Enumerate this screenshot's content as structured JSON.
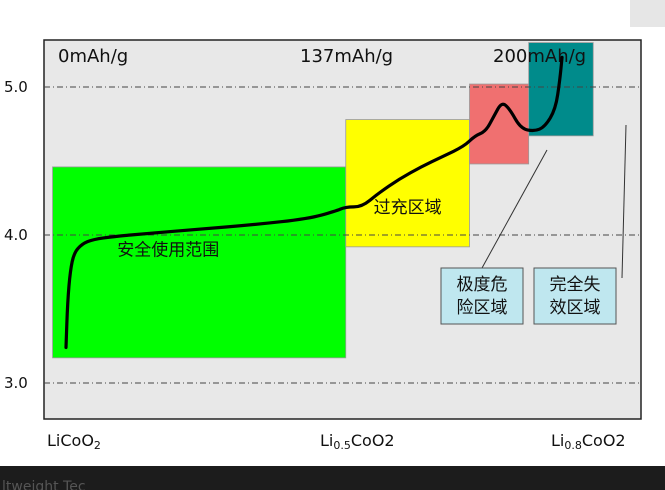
{
  "chart_data": {
    "type": "line",
    "title": "",
    "xlabel": "",
    "ylabel": "",
    "ylim": [
      2.65,
      5.35
    ],
    "xlim": [
      0,
      1
    ],
    "yticks": [
      {
        "value": 3.0,
        "label": "3.0"
      },
      {
        "value": 4.0,
        "label": "4.0"
      },
      {
        "value": 5.0,
        "label": "5.0"
      }
    ],
    "x_labels": [
      {
        "pos": 0.0,
        "main": "LiCoO",
        "sub": "",
        "tail": "2"
      },
      {
        "pos": 0.5,
        "main": "Li",
        "sub": "0.5",
        "tail": "CoO2"
      },
      {
        "pos": 0.8,
        "main": "Li",
        "sub": "0.8",
        "tail": "CoO2"
      }
    ],
    "capacity_labels": [
      {
        "pos": 0.0,
        "text": "0mAh/g"
      },
      {
        "pos": 0.5,
        "text": "137mAh/g"
      },
      {
        "pos": 0.8,
        "text": "200mAh/g"
      }
    ],
    "grid": "dash-dot horizontal at 3.0, 4.0, 5.0",
    "regions": [
      {
        "name": "安全使用范围",
        "x0": -0.025,
        "x1": 0.52,
        "y0": 3.17,
        "y1": 4.46,
        "color": "#00ff00"
      },
      {
        "name": "过充区域",
        "x0": 0.52,
        "x1": 0.75,
        "y0": 3.92,
        "y1": 4.78,
        "color": "#ffff00"
      },
      {
        "name": "极度危险区域",
        "x0": 0.75,
        "x1": 0.86,
        "y0": 4.48,
        "y1": 5.02,
        "color": "#f07070"
      },
      {
        "name": "完全失效区域",
        "x0": 0.86,
        "x1": 0.98,
        "y0": 4.67,
        "y1": 5.3,
        "color": "#008b8b"
      }
    ],
    "callouts": [
      {
        "text_lines": [
          "极度危",
          "险区域"
        ],
        "points_to": "极度危险区域"
      },
      {
        "text_lines": [
          "完全失",
          "效区域"
        ],
        "points_to": "完全失效区域"
      }
    ],
    "series": [
      {
        "x": [
          0.0,
          0.003,
          0.008,
          0.015,
          0.03,
          0.05,
          0.09,
          0.15,
          0.25,
          0.35,
          0.45,
          0.5,
          0.52,
          0.55,
          0.58,
          0.62,
          0.66,
          0.7,
          0.74,
          0.76,
          0.78,
          0.795,
          0.81,
          0.825,
          0.845,
          0.87,
          0.89,
          0.91,
          0.918,
          0.922
        ],
        "y": [
          3.24,
          3.55,
          3.76,
          3.88,
          3.94,
          3.97,
          3.99,
          4.01,
          4.04,
          4.07,
          4.11,
          4.16,
          4.19,
          4.19,
          4.28,
          4.38,
          4.46,
          4.53,
          4.6,
          4.67,
          4.7,
          4.8,
          4.9,
          4.85,
          4.72,
          4.7,
          4.73,
          4.85,
          5.05,
          5.2
        ]
      }
    ]
  },
  "footer": {
    "text": "ltweight Tec"
  }
}
